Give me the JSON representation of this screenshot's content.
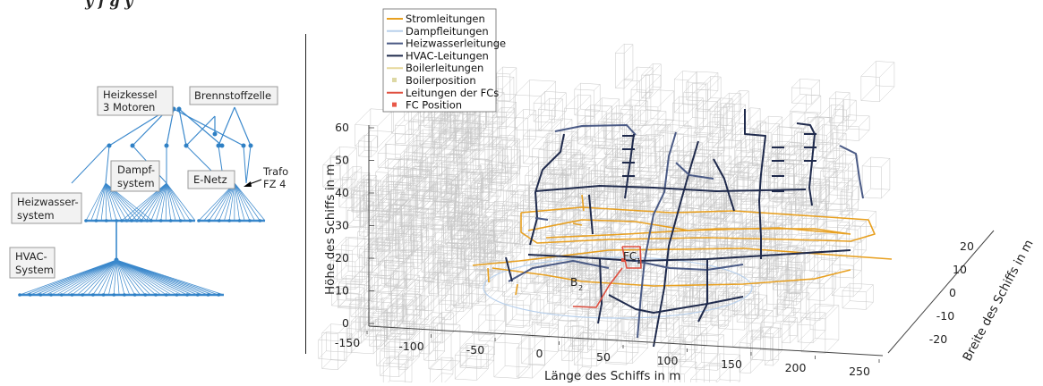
{
  "header_fragment": "y    f g y",
  "tree": {
    "colors": {
      "line": "#3a88cc",
      "node": "#2d7fc4",
      "box_border": "#999999",
      "box_fill": "#f2f2f2"
    },
    "boxes": {
      "heizkessel_line1": "Heizkessel",
      "heizkessel_line2": "3 Motoren",
      "brennstoffzelle": "Brennstoffzelle",
      "dampf_line1": "Dampf-",
      "dampf_line2": "system",
      "enetz": "E-Netz",
      "heizwasser_line1": "Heizwasser-",
      "heizwasser_line2": "system",
      "hvac_line1": "HVAC-",
      "hvac_line2": "System"
    },
    "annotations": {
      "trafo_line1": "Trafo",
      "trafo_line2": "FZ 4"
    }
  },
  "plot3d": {
    "legend": [
      {
        "label": "Stromleitungen",
        "color": "#e8a020",
        "kind": "line"
      },
      {
        "label": "Dampfleitungen",
        "color": "#b8d0ec",
        "kind": "line"
      },
      {
        "label": "Heizwasserleitunge",
        "color": "#4a5a85",
        "kind": "line"
      },
      {
        "label": "HVAC-Leitungen",
        "color": "#1f2a4c",
        "kind": "line"
      },
      {
        "label": "Boilerleitungen",
        "color": "#e6d79a",
        "kind": "line"
      },
      {
        "label": "Boilerposition",
        "color": "#ddd8a4",
        "kind": "square"
      },
      {
        "label": "Leitungen der FCs",
        "color": "#e05040",
        "kind": "line"
      },
      {
        "label": "FC Position",
        "color": "#e85848",
        "kind": "square"
      }
    ],
    "z_axis": {
      "label": "Höhe des Schiffs in m",
      "ticks": [
        "0",
        "10",
        "20",
        "30",
        "40",
        "50",
        "60"
      ]
    },
    "x_axis": {
      "label": "Länge des Schiffs in m",
      "ticks": [
        "-150",
        "-100",
        "-50",
        "0",
        "50",
        "100",
        "150",
        "200",
        "250"
      ]
    },
    "y_axis": {
      "label": "Breite des Schiffs in m",
      "ticks": [
        "-20",
        "-10",
        "0",
        "10",
        "20"
      ]
    },
    "annotations": {
      "fc": "FC",
      "fc_sub": "1",
      "b": "B",
      "b_sub": "2"
    },
    "colors": {
      "grid": "#c8c8c8",
      "axis": "#444444",
      "strom": "#e8a020",
      "hvac": "#1f2a4c",
      "heizwasser": "#4a5a85",
      "fc": "#e05040",
      "dampf": "#b8d0ec"
    }
  }
}
